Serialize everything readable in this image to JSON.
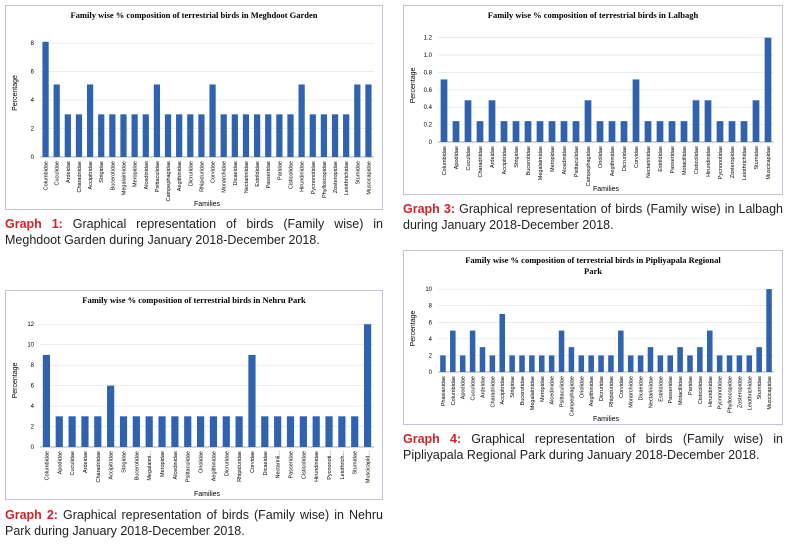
{
  "chart_data": [
    {
      "type": "bar",
      "title": "Family wise % composition of terrestrial birds in Meghdoot Garden",
      "ylabel": "Percentage",
      "xlabel": "Families",
      "color": "#2f63b0",
      "categories": [
        "Columbidae",
        "Cuculidae",
        "Ardeidae",
        "Charadriidae",
        "Accipitridae",
        "Strigidae",
        "Bucerotidae",
        "Megalaimidae",
        "Meropidae",
        "Alcedinidae",
        "Psittaculidae",
        "Campephagidae",
        "Aegithinidae",
        "Dicruridae",
        "Rhipiduridae",
        "Corvidae",
        "Monarchidae",
        "Dicaeidae",
        "Nectariniidae",
        "Estrildidae",
        "Passeridae",
        "Paridae",
        "Cisticolidae",
        "Hirundinidae",
        "Pycnonotidae",
        "Phylloscopidae",
        "Zosteropidae",
        "Leiothrichidae",
        "Sturnidae",
        "Muscicapidae"
      ],
      "values": [
        8.1,
        5.1,
        3,
        3,
        5.1,
        3,
        3,
        3,
        3,
        3,
        5.1,
        3,
        3,
        3,
        3,
        5.1,
        3,
        3,
        3,
        3,
        3,
        3,
        3,
        5.1,
        3,
        3,
        3,
        3,
        5.1,
        5.1
      ],
      "ylim": [
        0,
        9
      ],
      "yticks": [
        0,
        2,
        4,
        6,
        8
      ],
      "grid": true
    },
    {
      "type": "bar",
      "title": "Family wise % composition of terrestrial birds in Nehru Park",
      "ylabel": "Percentage",
      "xlabel": "Families",
      "color": "#2f63b0",
      "categories": [
        "Columbidae",
        "Apodidae",
        "Cuculidae",
        "Ardeidae",
        "Charadriidae",
        "Accipitridae",
        "Strigidae",
        "Bucerotidae",
        "Megalaimi...",
        "Meropidae",
        "Alcedinidae",
        "Psittaculidae",
        "Oriolidae",
        "Aegithinidae",
        "Dicruridae",
        "Rhipiduridae",
        "Corvidae",
        "Dicaeidae",
        "Nectarinii...",
        "Passeridae",
        "Cisticolidae",
        "Hirundinidae",
        "Pycnonoti...",
        "Leiothrich...",
        "Sturnidae",
        "Muscicapid..."
      ],
      "values": [
        9,
        3,
        3,
        3,
        3,
        6,
        3,
        3,
        3,
        3,
        3,
        3,
        3,
        3,
        3,
        3,
        9,
        3,
        3,
        3,
        3,
        3,
        3,
        3,
        3,
        12
      ],
      "ylim": [
        0,
        13
      ],
      "yticks": [
        0,
        2,
        4,
        6,
        8,
        10,
        12
      ],
      "grid": true
    },
    {
      "type": "bar",
      "title": "Family wise % composition of terrestrial birds in Lalbagh",
      "ylabel": "Percentage",
      "xlabel": "Families",
      "color": "#2f63b0",
      "categories": [
        "Columbidae",
        "Apodidae",
        "Cuculidae",
        "Charadriidae",
        "Ardeidae",
        "Accipitridae",
        "Strigidae",
        "Bucerotidae",
        "Megalaimidae",
        "Meropidae",
        "Alcedinidae",
        "Psittaculidae",
        "Campephagidae",
        "Oriolidae",
        "Aegithinidae",
        "Dicruridae",
        "Corvidae",
        "Nectariniidae",
        "Estrildidae",
        "Passeridae",
        "Motacillidae",
        "Cisticolidae",
        "Hirundinidae",
        "Pycnonotidae",
        "Zosteropidae",
        "Leiothrichidae",
        "Sturnidae",
        "Muscicapidae"
      ],
      "values": [
        0.72,
        0.24,
        0.48,
        0.24,
        0.48,
        0.24,
        0.24,
        0.24,
        0.24,
        0.24,
        0.24,
        0.24,
        0.48,
        0.24,
        0.24,
        0.24,
        0.72,
        0.24,
        0.24,
        0.24,
        0.24,
        0.48,
        0.48,
        0.24,
        0.24,
        0.24,
        0.48,
        1.2
      ],
      "ylim": [
        0,
        1.3
      ],
      "yticks": [
        0,
        0.2,
        0.4,
        0.6,
        0.8,
        {
          "value": 1,
          "label": "1.0"
        },
        1.2
      ],
      "grid": true
    },
    {
      "type": "bar",
      "title": "Family wise % composition of terrestrial birds in Pipliyapala Regional Park",
      "ylabel": "Percentage",
      "xlabel": "Families",
      "color": "#2f63b0",
      "categories": [
        "Phasianidae",
        "Columbidae",
        "Apodidae",
        "Cuculidae",
        "Ardeidae",
        "Charadriidae",
        "Accipitridae",
        "Strigidae",
        "Bucerotidae",
        "Megalaimidae",
        "Meropidae",
        "Alcedinidae",
        "Psittaculidae",
        "Campephagidae",
        "Oriolidae",
        "Aegithinidae",
        "Dicruridae",
        "Rhipiduridae",
        "Corvidae",
        "Monarchidae",
        "Dicaeidae",
        "Nectariniidae",
        "Estrildidae",
        "Passeridae",
        "Motacillidae",
        "Paridae",
        "Cisticolidae",
        "Hirundinidae",
        "Pycnonotidae",
        "Phylloscopidae",
        "Zosteropidae",
        "Leiothrichidae",
        "Sturnidae",
        "Muscicapidae"
      ],
      "values": [
        2,
        5,
        2,
        5,
        3,
        2,
        7,
        2,
        2,
        2,
        2,
        2,
        5,
        3,
        2,
        2,
        2,
        2,
        5,
        2,
        2,
        3,
        2,
        2,
        3,
        2,
        3,
        5,
        2,
        2,
        2,
        2,
        3,
        10
      ],
      "ylim": [
        0,
        10.5
      ],
      "yticks": [
        0,
        2,
        4,
        6,
        8,
        10
      ],
      "grid": true
    }
  ],
  "captions": [
    {
      "label": "Graph 1:",
      "text": "Graphical representation of birds (Family wise) in Meghdoot Garden during January 2018-December 2018."
    },
    {
      "label": "Graph 2:",
      "text": "Graphical representation of birds (Family wise) in Nehru Park during January 2018-December 2018."
    },
    {
      "label": "Graph 3:",
      "text": "Graphical representation of birds (Family wise) in Lalbagh during January 2018-December 2018."
    },
    {
      "label": "Graph 4:",
      "text": "Graphical representation of birds (Family wise) in Pipliyapala Regional Park during January 2018-December 2018."
    }
  ]
}
